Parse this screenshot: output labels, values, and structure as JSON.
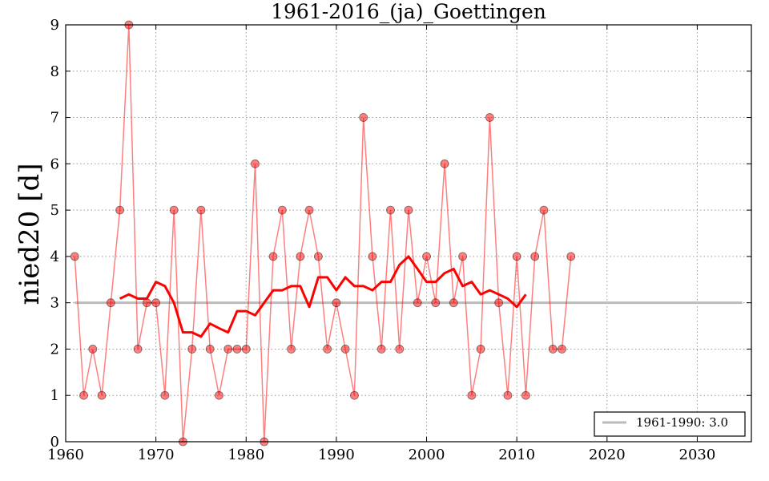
{
  "chart_data": {
    "type": "line",
    "title": "1961-2016_(ja)_Goettingen",
    "xlabel": "",
    "ylabel": "nied20 [d]",
    "xlim": [
      1960,
      2036
    ],
    "ylim": [
      0,
      9
    ],
    "xticks": [
      1960,
      1970,
      1980,
      1990,
      2000,
      2010,
      2020,
      2030
    ],
    "yticks": [
      0,
      1,
      2,
      3,
      4,
      5,
      6,
      7,
      8,
      9
    ],
    "grid": true,
    "legend_position": "bottom-right",
    "series": [
      {
        "style": "markers+thin-line",
        "color": "#ff0000",
        "alpha": 0.5,
        "x": [
          1961,
          1962,
          1963,
          1964,
          1965,
          1966,
          1967,
          1968,
          1969,
          1970,
          1971,
          1972,
          1973,
          1974,
          1975,
          1976,
          1977,
          1978,
          1979,
          1980,
          1981,
          1982,
          1983,
          1984,
          1985,
          1986,
          1987,
          1988,
          1989,
          1990,
          1991,
          1992,
          1993,
          1994,
          1995,
          1996,
          1997,
          1998,
          1999,
          2000,
          2001,
          2002,
          2003,
          2004,
          2005,
          2006,
          2007,
          2008,
          2009,
          2010,
          2011,
          2012,
          2013,
          2014,
          2015,
          2016
        ],
        "y": [
          4,
          1,
          2,
          1,
          3,
          5,
          9,
          2,
          3,
          3,
          1,
          5,
          0,
          2,
          5,
          2,
          1,
          2,
          2,
          2,
          6,
          0,
          4,
          5,
          2,
          4,
          5,
          4,
          2,
          3,
          2,
          1,
          7,
          4,
          2,
          5,
          2,
          5,
          3,
          4,
          3,
          6,
          3,
          4,
          1,
          2,
          7,
          3,
          1,
          4,
          1,
          4,
          5,
          2,
          2,
          4
        ]
      },
      {
        "style": "thick-line",
        "color": "#ff0000",
        "x": [
          1966,
          1967,
          1968,
          1969,
          1970,
          1971,
          1972,
          1973,
          1974,
          1975,
          1976,
          1977,
          1978,
          1979,
          1980,
          1981,
          1982,
          1983,
          1984,
          1985,
          1986,
          1987,
          1988,
          1989,
          1990,
          1991,
          1992,
          1993,
          1994,
          1995,
          1996,
          1997,
          1998,
          1999,
          2000,
          2001,
          2002,
          2003,
          2004,
          2005,
          2006,
          2007,
          2008,
          2009,
          2010,
          2011
        ],
        "y": [
          3.09,
          3.18,
          3.09,
          3.09,
          3.45,
          3.36,
          3.0,
          2.36,
          2.36,
          2.27,
          2.55,
          2.45,
          2.36,
          2.82,
          2.82,
          2.73,
          3.0,
          3.27,
          3.27,
          3.36,
          3.36,
          2.91,
          3.55,
          3.55,
          3.27,
          3.55,
          3.36,
          3.36,
          3.27,
          3.45,
          3.45,
          3.82,
          4.0,
          3.73,
          3.45,
          3.45,
          3.64,
          3.73,
          3.36,
          3.45,
          3.18,
          3.27,
          3.18,
          3.09,
          2.91,
          3.18
        ]
      },
      {
        "name": "1961-1990: 3.0",
        "style": "reference-line",
        "color": "#bbbbbb",
        "x": [
          1961,
          2035
        ],
        "y": [
          3.0,
          3.0
        ]
      }
    ]
  }
}
